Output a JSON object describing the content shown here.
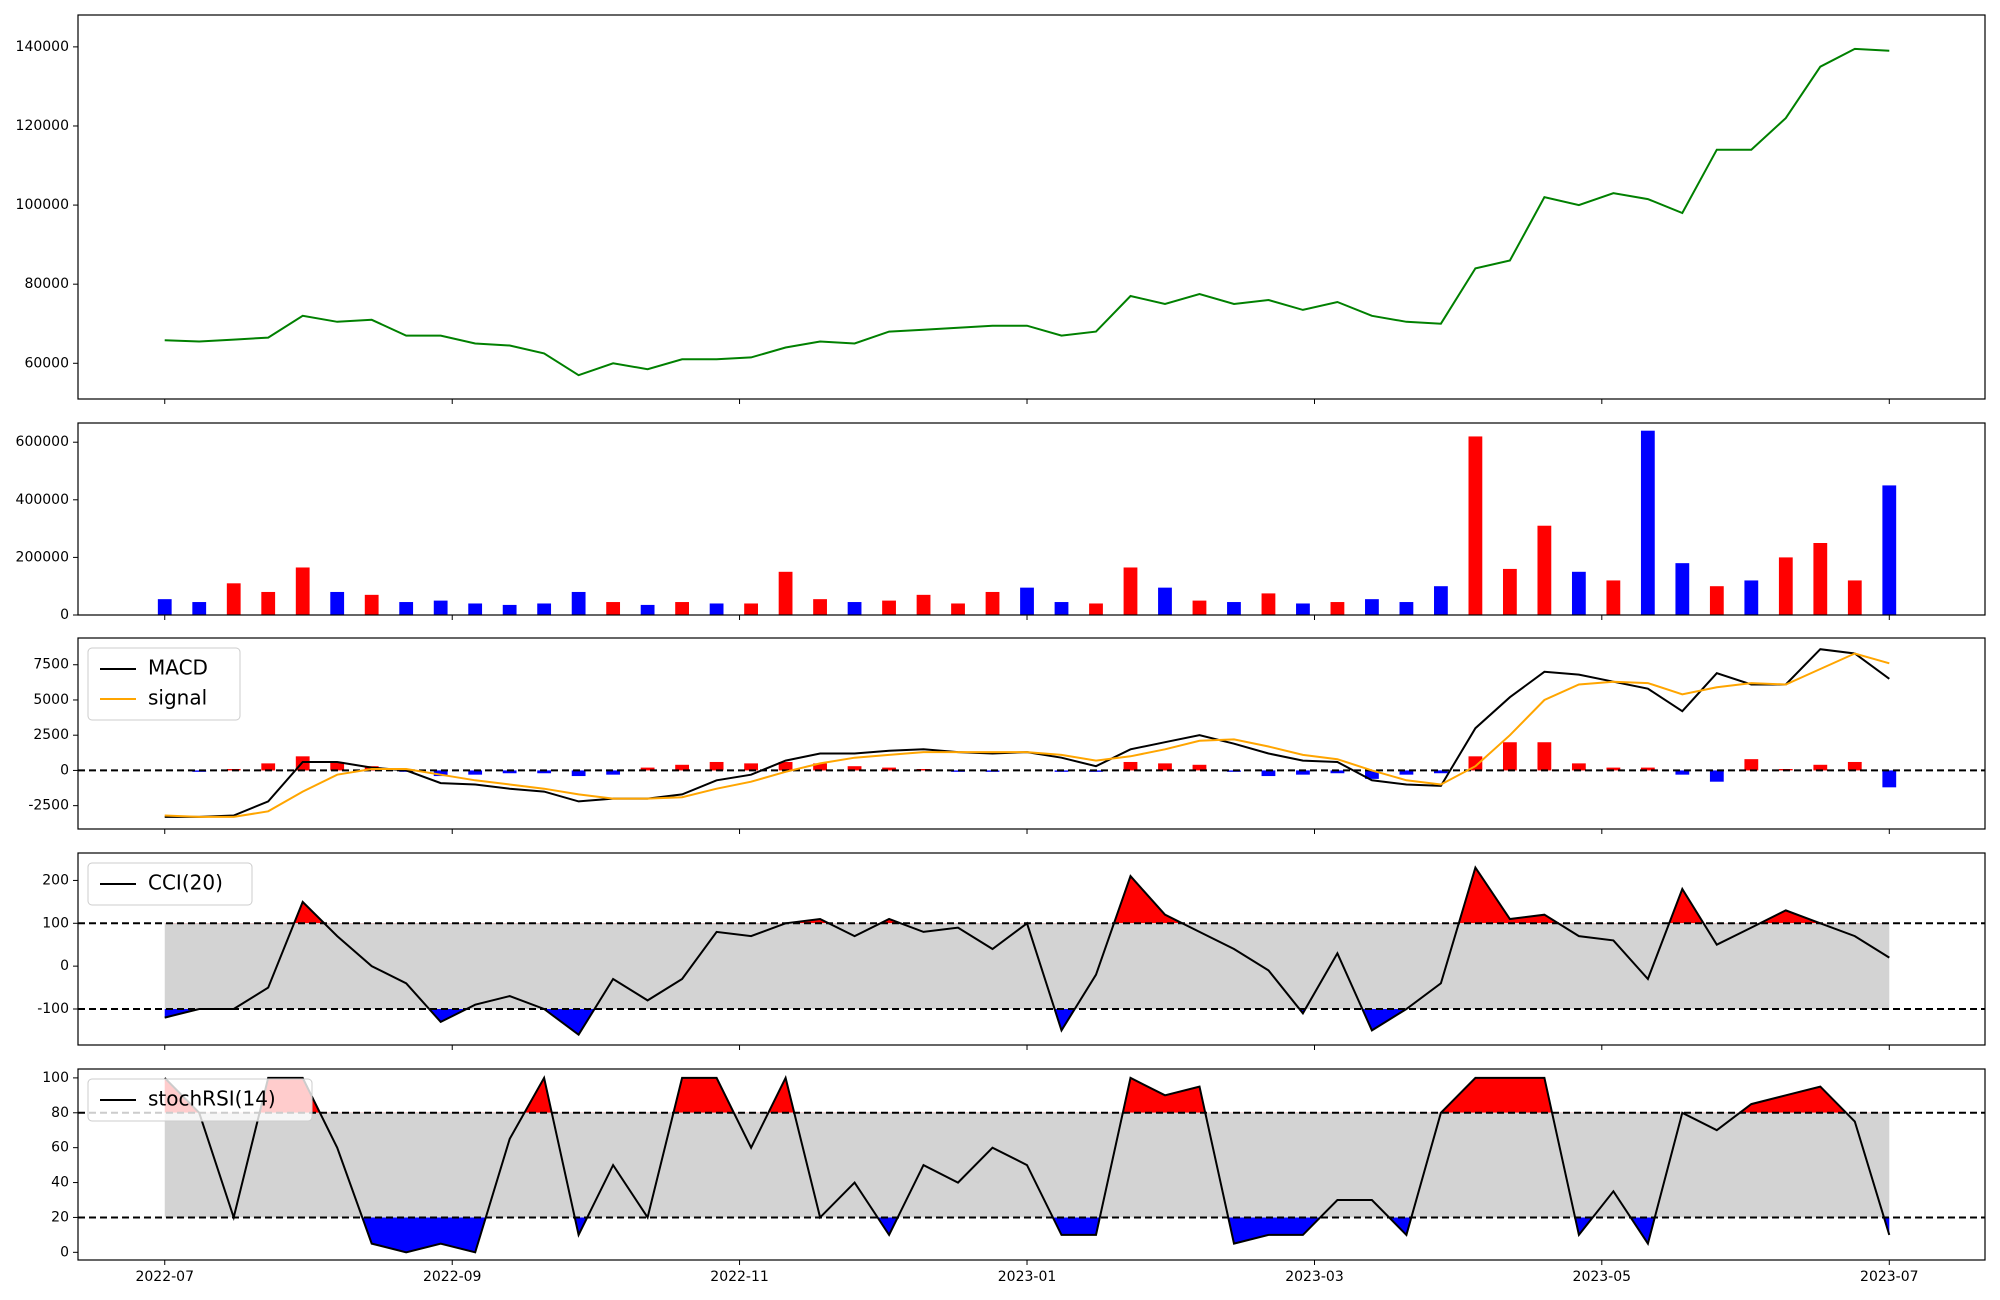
{
  "chart_data": {
    "x": [
      2022.5,
      2022.52,
      2022.54,
      2022.56,
      2022.58,
      2022.6,
      2022.62,
      2022.64,
      2022.66,
      2022.68,
      2022.7,
      2022.72,
      2022.74,
      2022.76,
      2022.78,
      2022.8,
      2022.82,
      2022.84,
      2022.86,
      2022.88,
      2022.9,
      2022.92,
      2022.94,
      2022.96,
      2022.98,
      2023,
      2023.02,
      2023.04,
      2023.06,
      2023.08,
      2023.1,
      2023.12,
      2023.14,
      2023.16,
      2023.18,
      2023.2,
      2023.22,
      2023.24,
      2023.26,
      2023.28,
      2023.3,
      2023.32,
      2023.34,
      2023.36,
      2023.38,
      2023.4,
      2023.42,
      2023.44,
      2023.46,
      2023.48,
      2023.5
    ],
    "xlim": [
      2022.4497,
      2023.5555
    ],
    "xticks": [
      {
        "value": 2022.5,
        "label": "2022-07"
      },
      {
        "value": 2022.6667,
        "label": "2022-09"
      },
      {
        "value": 2022.8333,
        "label": "2022-11"
      },
      {
        "value": 2023.0,
        "label": "2023-01"
      },
      {
        "value": 2023.1667,
        "label": "2023-03"
      },
      {
        "value": 2023.3333,
        "label": "2023-05"
      },
      {
        "value": 2023.5,
        "label": "2023-07"
      }
    ],
    "panels": [
      {
        "type": "line",
        "ylim": [
          50970,
          148060
        ],
        "yticks": [
          60000,
          80000,
          100000,
          120000,
          140000
        ],
        "series": [
          {
            "color": "green",
            "values": [
              65800,
              65500,
              66000,
              66500,
              72000,
              70500,
              71000,
              67000,
              67000,
              65000,
              64500,
              62500,
              57000,
              60000,
              58500,
              61000,
              61000,
              61500,
              64000,
              65500,
              65000,
              68000,
              68500,
              69000,
              69500,
              69500,
              67000,
              68000,
              77000,
              75000,
              77500,
              75000,
              76000,
              73500,
              75500,
              72000,
              70500,
              70000,
              84000,
              86000,
              102000,
              100000,
              103000,
              101500,
              98000,
              114000,
              114000,
              122000,
              135000,
              139500,
              139000
            ]
          }
        ]
      },
      {
        "type": "bar",
        "ylim": [
          0,
          666700
        ],
        "yticks": [
          0,
          200000,
          400000,
          600000
        ],
        "values": [
          55000,
          45000,
          110000,
          80000,
          165000,
          80000,
          70000,
          45000,
          50000,
          40000,
          35000,
          40000,
          80000,
          45000,
          35000,
          45000,
          40000,
          40000,
          150000,
          55000,
          45000,
          50000,
          70000,
          40000,
          80000,
          95000,
          45000,
          40000,
          165000,
          95000,
          50000,
          45000,
          75000,
          40000,
          45000,
          55000,
          45000,
          100000,
          620000,
          160000,
          310000,
          150000,
          120000,
          640000,
          180000,
          100000,
          120000,
          200000,
          250000,
          120000,
          450000
        ],
        "colors": [
          "blue",
          "blue",
          "red",
          "red",
          "red",
          "blue",
          "red",
          "blue",
          "blue",
          "blue",
          "blue",
          "blue",
          "blue",
          "red",
          "blue",
          "red",
          "blue",
          "red",
          "red",
          "red",
          "blue",
          "red",
          "red",
          "red",
          "red",
          "blue",
          "blue",
          "red",
          "red",
          "blue",
          "red",
          "blue",
          "red",
          "blue",
          "red",
          "blue",
          "blue",
          "blue",
          "red",
          "red",
          "red",
          "blue",
          "red",
          "blue",
          "blue",
          "red",
          "blue",
          "red",
          "red",
          "red",
          "blue"
        ]
      },
      {
        "type": "macd",
        "ylim": [
          -4157,
          9398
        ],
        "yticks": [
          -2500,
          0,
          2500,
          5000,
          7500
        ],
        "levels": [
          0
        ],
        "legend": "upper left",
        "series": [
          {
            "name": "MACD",
            "color": "black",
            "values": [
              -3300,
              -3300,
              -3200,
              -2200,
              600,
              600,
              200,
              0,
              -900,
              -1000,
              -1300,
              -1500,
              -2200,
              -2000,
              -2000,
              -1700,
              -700,
              -300,
              700,
              1200,
              1200,
              1400,
              1500,
              1300,
              1200,
              1300,
              900,
              300,
              1500,
              2000,
              2500,
              1900,
              1200,
              700,
              600,
              -700,
              -1000,
              -1100,
              3000,
              5200,
              7000,
              6800,
              6300,
              5800,
              4200,
              6900,
              6100,
              6100,
              8600,
              8300,
              6500
            ]
          },
          {
            "name": "signal",
            "color": "orange",
            "values": [
              -3200,
              -3300,
              -3300,
              -2900,
              -1500,
              -300,
              100,
              100,
              -300,
              -700,
              -1000,
              -1300,
              -1700,
              -2000,
              -2000,
              -1900,
              -1300,
              -800,
              -100,
              500,
              900,
              1100,
              1300,
              1300,
              1300,
              1300,
              1100,
              700,
              1000,
              1500,
              2100,
              2200,
              1700,
              1100,
              800,
              0,
              -700,
              -1000,
              300,
              2500,
              5000,
              6100,
              6300,
              6200,
              5400,
              5900,
              6200,
              6100,
              7200,
              8300,
              7600
            ]
          }
        ],
        "histogram": {
          "up_color": "red",
          "down_color": "blue",
          "values": [
            0,
            -100,
            100,
            500,
            1000,
            600,
            300,
            -100,
            -400,
            -300,
            -200,
            -200,
            -400,
            -300,
            200,
            400,
            600,
            500,
            600,
            500,
            300,
            200,
            100,
            -100,
            -100,
            0,
            -100,
            -100,
            600,
            500,
            400,
            -100,
            -400,
            -300,
            -200,
            -600,
            -300,
            -200,
            1000,
            2000,
            2000,
            500,
            200,
            200,
            -300,
            -800,
            800,
            100,
            400,
            600,
            -1200
          ]
        }
      },
      {
        "type": "oscillator",
        "ylim": [
          -184,
          264
        ],
        "yticks": [
          -100,
          0,
          100,
          200
        ],
        "levels": [
          -100,
          100
        ],
        "band_color": "lightgray",
        "above_color": "red",
        "below_color": "blue",
        "legend": "upper left",
        "series": [
          {
            "name": "CCI(20)",
            "color": "black",
            "values": [
              -120,
              -100,
              -100,
              -50,
              150,
              70,
              0,
              -40,
              -130,
              -90,
              -70,
              -100,
              -160,
              -30,
              -80,
              -30,
              80,
              70,
              100,
              110,
              70,
              110,
              80,
              90,
              40,
              100,
              -150,
              -20,
              210,
              120,
              80,
              40,
              -10,
              -110,
              30,
              -150,
              -100,
              -40,
              230,
              110,
              120,
              70,
              60,
              -30,
              180,
              50,
              90,
              130,
              100,
              70,
              20
            ]
          }
        ]
      },
      {
        "type": "oscillator",
        "ylim": [
          -4.4,
          105.1
        ],
        "yticks": [
          0,
          20,
          40,
          60,
          80,
          100
        ],
        "levels": [
          20,
          80
        ],
        "band_color": "lightgray",
        "above_color": "red",
        "below_color": "blue",
        "legend": "upper left",
        "series": [
          {
            "name": "stochRSI(14)",
            "color": "black",
            "values": [
              100,
              80,
              20,
              100,
              100,
              60,
              5,
              0,
              5,
              0,
              65,
              100,
              10,
              50,
              20,
              100,
              100,
              60,
              100,
              20,
              40,
              10,
              50,
              40,
              60,
              50,
              10,
              10,
              100,
              90,
              95,
              5,
              10,
              10,
              30,
              30,
              10,
              80,
              100,
              100,
              100,
              10,
              35,
              5,
              80,
              70,
              85,
              90,
              95,
              75,
              10
            ]
          }
        ]
      }
    ]
  }
}
